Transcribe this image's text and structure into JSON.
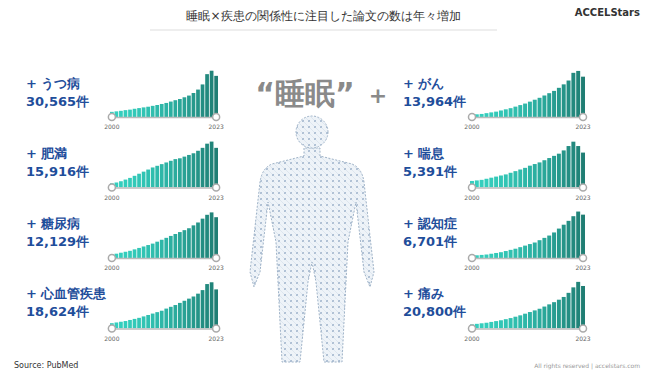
{
  "title": "睡眠×疾患の関係性に注目した論文の数は年々増加",
  "logo": "ACCELStars",
  "center_label": "“睡眠”",
  "plus": "+",
  "source": "Source: PubMed",
  "copyright": "All rights reserved | accelstars.com",
  "chart_data": [
    {
      "type": "bar",
      "title": "+ うつ病",
      "subtitle": "30,565件",
      "categories": [
        "2000",
        null,
        null,
        null,
        null,
        null,
        null,
        null,
        null,
        null,
        null,
        null,
        null,
        null,
        null,
        null,
        null,
        null,
        null,
        null,
        null,
        null,
        null,
        "2023"
      ],
      "values": [
        300,
        330,
        360,
        400,
        430,
        480,
        520,
        560,
        600,
        650,
        700,
        760,
        820,
        900,
        980,
        1050,
        1150,
        1250,
        1400,
        1600,
        1900,
        2500,
        2700,
        2400
      ],
      "color": "#2aa89a",
      "ylim": [
        0,
        2800
      ],
      "tick_labels": "x"
    },
    {
      "type": "bar",
      "title": "+ 肥満",
      "subtitle": "15,916件",
      "categories": [
        "2000",
        null,
        null,
        null,
        null,
        null,
        null,
        null,
        null,
        null,
        null,
        null,
        null,
        null,
        null,
        null,
        null,
        null,
        null,
        null,
        null,
        null,
        null,
        "2023"
      ],
      "values": [
        100,
        120,
        150,
        190,
        230,
        280,
        330,
        380,
        430,
        480,
        520,
        560,
        600,
        640,
        680,
        700,
        740,
        780,
        820,
        880,
        950,
        1050,
        1100,
        950
      ],
      "color": "#2aa89a",
      "ylim": [
        0,
        1150
      ],
      "tick_labels": "x"
    },
    {
      "type": "bar",
      "title": "+ 糖尿病",
      "subtitle": "12,129件",
      "categories": [
        "2000",
        null,
        null,
        null,
        null,
        null,
        null,
        null,
        null,
        null,
        null,
        null,
        null,
        null,
        null,
        null,
        null,
        null,
        null,
        null,
        null,
        null,
        null,
        "2023"
      ],
      "values": [
        80,
        90,
        110,
        130,
        150,
        180,
        210,
        240,
        270,
        300,
        340,
        380,
        420,
        460,
        500,
        540,
        580,
        620,
        680,
        740,
        820,
        900,
        950,
        850
      ],
      "color": "#2aa89a",
      "ylim": [
        0,
        1000
      ],
      "tick_labels": "x"
    },
    {
      "type": "bar",
      "title": "+ 心血管疾患",
      "subtitle": "18,624件",
      "categories": [
        "2000",
        null,
        null,
        null,
        null,
        null,
        null,
        null,
        null,
        null,
        null,
        null,
        null,
        null,
        null,
        null,
        null,
        null,
        null,
        null,
        null,
        null,
        null,
        "2023"
      ],
      "values": [
        150,
        170,
        190,
        210,
        240,
        270,
        300,
        340,
        380,
        420,
        460,
        500,
        560,
        610,
        660,
        720,
        780,
        840,
        900,
        980,
        1080,
        1250,
        1300,
        1100
      ],
      "color": "#2aa89a",
      "ylim": [
        0,
        1350
      ],
      "tick_labels": "x"
    },
    {
      "type": "bar",
      "title": "+ がん",
      "subtitle": "13,964件",
      "categories": [
        "2000",
        null,
        null,
        null,
        null,
        null,
        null,
        null,
        null,
        null,
        null,
        null,
        null,
        null,
        null,
        null,
        null,
        null,
        null,
        null,
        null,
        null,
        null,
        "2023"
      ],
      "values": [
        60,
        70,
        80,
        100,
        120,
        140,
        170,
        200,
        230,
        270,
        310,
        350,
        400,
        450,
        500,
        560,
        620,
        680,
        760,
        850,
        950,
        1150,
        1200,
        1050
      ],
      "color": "#2aa89a",
      "ylim": [
        0,
        1250
      ],
      "tick_labels": "x"
    },
    {
      "type": "bar",
      "title": "+ 喘息",
      "subtitle": "5,391件",
      "categories": [
        "2000",
        null,
        null,
        null,
        null,
        null,
        null,
        null,
        null,
        null,
        null,
        null,
        null,
        null,
        null,
        null,
        null,
        null,
        null,
        null,
        null,
        null,
        null,
        "2023"
      ],
      "values": [
        60,
        65,
        70,
        80,
        90,
        100,
        110,
        120,
        135,
        150,
        165,
        180,
        200,
        215,
        230,
        250,
        270,
        290,
        310,
        340,
        380,
        420,
        380,
        320
      ],
      "color": "#2aa89a",
      "ylim": [
        0,
        440
      ],
      "tick_labels": "x"
    },
    {
      "type": "bar",
      "title": "+ 認知症",
      "subtitle": "6,701件",
      "categories": [
        "2000",
        null,
        null,
        null,
        null,
        null,
        null,
        null,
        null,
        null,
        null,
        null,
        null,
        null,
        null,
        null,
        null,
        null,
        null,
        null,
        null,
        null,
        null,
        "2023"
      ],
      "values": [
        30,
        35,
        40,
        45,
        55,
        65,
        75,
        90,
        105,
        120,
        140,
        160,
        180,
        200,
        230,
        260,
        290,
        330,
        380,
        430,
        480,
        540,
        600,
        560
      ],
      "color": "#2aa89a",
      "ylim": [
        0,
        620
      ],
      "tick_labels": "x"
    },
    {
      "type": "bar",
      "title": "+ 痛み",
      "subtitle": "20,800件",
      "categories": [
        "2000",
        null,
        null,
        null,
        null,
        null,
        null,
        null,
        null,
        null,
        null,
        null,
        null,
        null,
        null,
        null,
        null,
        null,
        null,
        null,
        null,
        null,
        null,
        "2023"
      ],
      "values": [
        150,
        170,
        190,
        210,
        240,
        270,
        300,
        340,
        380,
        430,
        480,
        540,
        600,
        660,
        720,
        800,
        880,
        960,
        1050,
        1150,
        1300,
        1500,
        1700,
        1550
      ],
      "color": "#2aa89a",
      "ylim": [
        0,
        1750
      ],
      "tick_labels": "x"
    }
  ]
}
